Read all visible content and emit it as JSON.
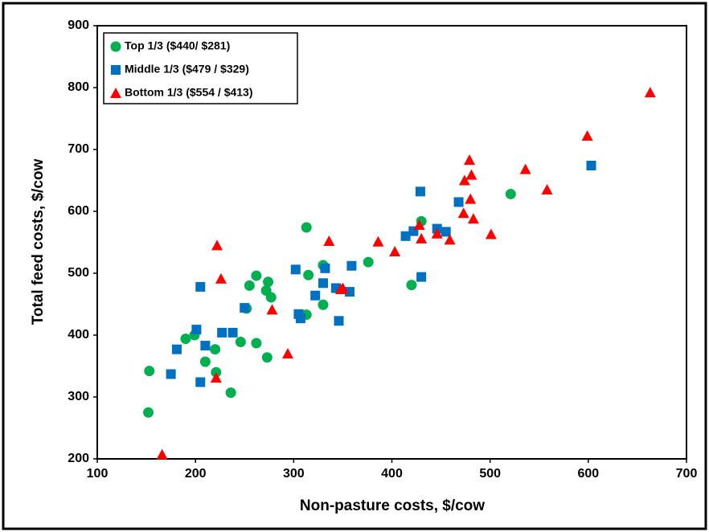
{
  "chart_data": {
    "type": "scatter",
    "x_label": "Non-pasture costs, $/cow",
    "y_label": "Total feed costs, $/cow",
    "xlim": [
      100,
      700
    ],
    "xticks": [
      100,
      200,
      300,
      400,
      500,
      600,
      700
    ],
    "ylim": [
      200,
      900
    ],
    "yticks": [
      200,
      300,
      400,
      500,
      600,
      700,
      800,
      900
    ],
    "grid": false,
    "legend": "upper-left",
    "series": [
      {
        "name": "Top 1/3 ($440/ $281)",
        "color": "#00b050",
        "marker": "circle",
        "x": [
          152,
          153,
          190,
          199,
          210,
          220,
          221,
          236,
          246,
          255,
          262,
          262,
          272,
          273,
          274,
          277,
          252,
          313,
          315,
          313,
          330,
          330,
          376,
          420,
          430,
          521
        ],
        "values": [
          275,
          342,
          394,
          400,
          357,
          377,
          340,
          307,
          389,
          480,
          496,
          387,
          472,
          364,
          486,
          461,
          443,
          574,
          497,
          433,
          513,
          449,
          518,
          481,
          584,
          628
        ]
      },
      {
        "name": "Middle 1/3 ($479 / $329)",
        "color": "#0070c0",
        "marker": "square",
        "x": [
          175,
          181,
          201,
          205,
          205,
          210,
          227,
          238,
          250,
          302,
          305,
          307,
          322,
          330,
          332,
          343,
          346,
          357,
          359,
          414,
          422,
          429,
          430,
          446,
          455,
          468,
          603
        ],
        "values": [
          337,
          377,
          409,
          324,
          478,
          383,
          404,
          404,
          444,
          506,
          434,
          427,
          464,
          484,
          508,
          476,
          423,
          470,
          512,
          560,
          568,
          632,
          494,
          572,
          567,
          615,
          674
        ]
      },
      {
        "name": "Bottom 1/3 ($554 / $413)",
        "color": "#ff0000",
        "marker": "triangle",
        "x": [
          166,
          221,
          222,
          226,
          278,
          294,
          336,
          348,
          350,
          386,
          403,
          428,
          430,
          446,
          459,
          473,
          474,
          479,
          480,
          481,
          483,
          501,
          536,
          558,
          599,
          663
        ],
        "values": [
          207,
          331,
          545,
          491,
          441,
          370,
          552,
          474,
          476,
          551,
          535,
          578,
          556,
          564,
          554,
          597,
          650,
          683,
          620,
          659,
          588,
          563,
          668,
          635,
          722,
          792
        ]
      }
    ]
  }
}
